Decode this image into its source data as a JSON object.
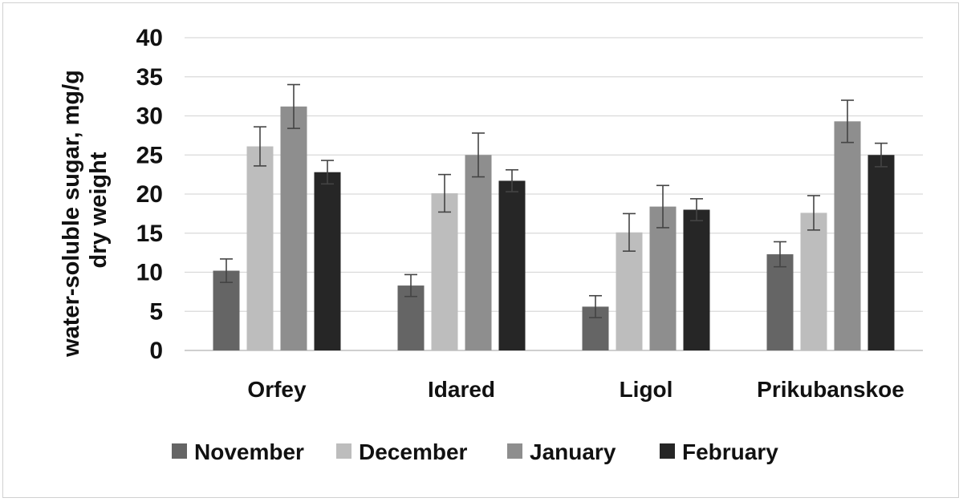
{
  "chart_data": {
    "type": "bar",
    "title": "",
    "xlabel": "",
    "ylabel": "water-soluble sugar, mg/g dry weight",
    "ylabel_lines": [
      "water-soluble sugar, mg/g",
      "dry weight"
    ],
    "ylim": [
      0,
      40
    ],
    "yticks": [
      0,
      5,
      10,
      15,
      20,
      25,
      30,
      35,
      40
    ],
    "grid": true,
    "legend_position": "bottom",
    "categories": [
      "Orfey",
      "Idared",
      "Ligol",
      "Prikubanskoe"
    ],
    "series": [
      {
        "name": "November",
        "color": "#656565",
        "values": [
          10.2,
          8.3,
          5.6,
          12.3
        ],
        "errors": [
          1.5,
          1.4,
          1.4,
          1.6
        ]
      },
      {
        "name": "December",
        "color": "#bdbdbd",
        "values": [
          26.1,
          20.1,
          15.1,
          17.6
        ],
        "errors": [
          2.5,
          2.4,
          2.4,
          2.2
        ]
      },
      {
        "name": "January",
        "color": "#8e8e8e",
        "values": [
          31.2,
          25.0,
          18.4,
          29.3
        ],
        "errors": [
          2.8,
          2.8,
          2.7,
          2.7
        ]
      },
      {
        "name": "February",
        "color": "#262626",
        "values": [
          22.8,
          21.7,
          18.0,
          25.0
        ],
        "errors": [
          1.5,
          1.4,
          1.4,
          1.5
        ]
      }
    ]
  }
}
